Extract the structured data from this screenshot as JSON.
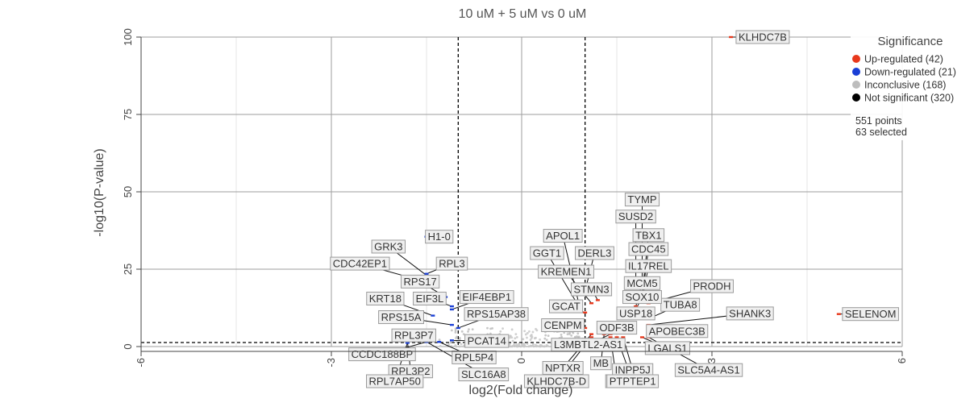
{
  "chart_data": {
    "type": "scatter",
    "title": "10 uM + 5 uM vs 0 uM",
    "xlabel": "log2(Fold change)",
    "ylabel": "-log10(P-value)",
    "xlim": [
      -6,
      6
    ],
    "ylim": [
      0,
      100
    ],
    "x_ticks": [
      "-6",
      "-3",
      "0",
      "3",
      "6"
    ],
    "y_ticks": [
      "0",
      "25",
      "50",
      "75",
      "100"
    ],
    "fold_change_threshold_lines": [
      -1,
      1
    ],
    "pvalue_threshold_line": 1.3,
    "grid": true,
    "legend": {
      "title": "Significance",
      "position": "top-right",
      "entries": [
        {
          "label": "Up-regulated (42)",
          "color": "#e8381c"
        },
        {
          "label": "Down-regulated (21)",
          "color": "#1a3fd6"
        },
        {
          "label": "Inconclusive (168)",
          "color": "#bdbdbd"
        },
        {
          "label": "Not significant (320)",
          "color": "#000000"
        }
      ],
      "summary": [
        "551 points",
        "63 selected"
      ]
    },
    "points": [
      {
        "gene": "KLHDC7B",
        "x": 3.3,
        "y": 100,
        "sig": "up",
        "lx": 3.8,
        "ly": 100
      },
      {
        "gene": "SELENOM",
        "x": 5.0,
        "y": 10.5,
        "sig": "up",
        "lx": 5.5,
        "ly": 10.5
      },
      {
        "gene": "TYMP",
        "x": 1.9,
        "y": 21,
        "sig": "up",
        "lx": 1.9,
        "ly": 47.5
      },
      {
        "gene": "SUSD2",
        "x": 1.8,
        "y": 19,
        "sig": "up",
        "lx": 1.8,
        "ly": 42
      },
      {
        "gene": "TBX1",
        "x": 1.9,
        "y": 17,
        "sig": "up",
        "lx": 2.0,
        "ly": 36
      },
      {
        "gene": "CDC45",
        "x": 1.9,
        "y": 16,
        "sig": "up",
        "lx": 2.0,
        "ly": 31.5
      },
      {
        "gene": "IL17REL",
        "x": 1.9,
        "y": 15,
        "sig": "up",
        "lx": 2.0,
        "ly": 26
      },
      {
        "gene": "PRODH",
        "x": 2.0,
        "y": 14,
        "sig": "up",
        "lx": 3.0,
        "ly": 19.5
      },
      {
        "gene": "TUBA8",
        "x": 2.0,
        "y": 9,
        "sig": "up",
        "lx": 2.5,
        "ly": 13.5
      },
      {
        "gene": "SHANK3",
        "x": 2.0,
        "y": 7,
        "sig": "up",
        "lx": 3.6,
        "ly": 10.7
      },
      {
        "gene": "APOBEC3B",
        "x": 2.0,
        "y": 5,
        "sig": "up",
        "lx": 2.45,
        "ly": 5.0
      },
      {
        "gene": "MCM5",
        "x": 1.8,
        "y": 13,
        "sig": "up",
        "lx": 1.9,
        "ly": 20.5
      },
      {
        "gene": "SOX10",
        "x": 1.8,
        "y": 12,
        "sig": "up",
        "lx": 1.9,
        "ly": 16
      },
      {
        "gene": "USP18",
        "x": 1.7,
        "y": 10,
        "sig": "up",
        "lx": 1.8,
        "ly": 10.7
      },
      {
        "gene": "STMN3",
        "x": 1.2,
        "y": 15,
        "sig": "up",
        "lx": 1.1,
        "ly": 18.5
      },
      {
        "gene": "DERL3",
        "x": 1.0,
        "y": 18,
        "sig": "up",
        "lx": 1.15,
        "ly": 30.2
      },
      {
        "gene": "APOL1",
        "x": 0.9,
        "y": 14,
        "sig": "up",
        "lx": 0.65,
        "ly": 35.8
      },
      {
        "gene": "GGT1",
        "x": 0.9,
        "y": 13,
        "sig": "up",
        "lx": 0.4,
        "ly": 30.2
      },
      {
        "gene": "KREMEN1",
        "x": 1.1,
        "y": 14,
        "sig": "up",
        "lx": 0.7,
        "ly": 24.2
      },
      {
        "gene": "GCAT",
        "x": 1.0,
        "y": 11,
        "sig": "up",
        "lx": 0.7,
        "ly": 13
      },
      {
        "gene": "CENPM",
        "x": 1.0,
        "y": 6,
        "sig": "up",
        "lx": 0.65,
        "ly": 6.9
      },
      {
        "gene": "ODF3B",
        "x": 1.4,
        "y": 6,
        "sig": "up",
        "lx": 1.5,
        "ly": 6.1
      },
      {
        "gene": "L3MBTL2-AS1",
        "x": 1.4,
        "y": 4,
        "sig": "up",
        "lx": 1.05,
        "ly": 0.6
      },
      {
        "gene": "LGALS1",
        "x": 1.9,
        "y": 3,
        "sig": "up",
        "lx": 2.3,
        "ly": -0.5
      },
      {
        "gene": "SLC5A4-AS1",
        "x": 2.0,
        "y": 3,
        "sig": "up",
        "lx": 2.95,
        "ly": -7.6
      },
      {
        "gene": "INPP5J",
        "x": 1.6,
        "y": 3,
        "sig": "up",
        "lx": 1.75,
        "ly": -7.6
      },
      {
        "gene": "NPTXR",
        "x": 1.1,
        "y": 4,
        "sig": "up",
        "lx": 0.65,
        "ly": -6.9
      },
      {
        "gene": "MB",
        "x": 1.3,
        "y": 4,
        "sig": "up",
        "lx": 1.25,
        "ly": -5.4
      },
      {
        "gene": "KLHDC7B-D",
        "x": 1.1,
        "y": 3,
        "sig": "up",
        "lx": 0.55,
        "ly": -11.2
      },
      {
        "gene": "BIN",
        "x": 1.4,
        "y": 3,
        "sig": "up",
        "lx": 1.5,
        "ly": -11.2
      },
      {
        "gene": "PTPTEP1",
        "x": 1.5,
        "y": 3,
        "sig": "up",
        "lx": 1.75,
        "ly": -11.2
      },
      {
        "gene": "H1-0",
        "x": -1.5,
        "y": 35.5,
        "sig": "down",
        "lx": -1.3,
        "ly": 35.5
      },
      {
        "gene": "GRK3",
        "x": -1.5,
        "y": 23,
        "sig": "down",
        "lx": -2.1,
        "ly": 32.3
      },
      {
        "gene": "CDC42EP1",
        "x": -1.7,
        "y": 22,
        "sig": "down",
        "lx": -2.55,
        "ly": 26.8
      },
      {
        "gene": "RPL3",
        "x": -1.5,
        "y": 23.5,
        "sig": "down",
        "lx": -1.1,
        "ly": 26.8
      },
      {
        "gene": "RPS17",
        "x": -1.2,
        "y": 16,
        "sig": "down",
        "lx": -1.6,
        "ly": 21
      },
      {
        "gene": "KRT18",
        "x": -1.4,
        "y": 10,
        "sig": "down",
        "lx": -2.15,
        "ly": 15.5
      },
      {
        "gene": "EIF3L",
        "x": -1.1,
        "y": 13,
        "sig": "down",
        "lx": -1.45,
        "ly": 15.5
      },
      {
        "gene": "EIF4EBP1",
        "x": -1.1,
        "y": 12,
        "sig": "down",
        "lx": -0.55,
        "ly": 16
      },
      {
        "gene": "RPS15A",
        "x": -1.1,
        "y": 7,
        "sig": "down",
        "lx": -1.9,
        "ly": 9.5
      },
      {
        "gene": "RPS15AP38",
        "x": -1.0,
        "y": 6,
        "sig": "down",
        "lx": -0.4,
        "ly": 10.5
      },
      {
        "gene": "RPL3P7",
        "x": -1.6,
        "y": 2,
        "sig": "down",
        "lx": -1.7,
        "ly": 3.6
      },
      {
        "gene": "PCAT14",
        "x": -1.1,
        "y": 2,
        "sig": "down",
        "lx": -0.55,
        "ly": 1.8
      },
      {
        "gene": "CCDC188BP",
        "x": -1.5,
        "y": 1.5,
        "sig": "down",
        "lx": -2.2,
        "ly": -2.5
      },
      {
        "gene": "RPL5P4",
        "x": -1.3,
        "y": 1.5,
        "sig": "down",
        "lx": -0.75,
        "ly": -3.5
      },
      {
        "gene": "RPL3P2",
        "x": -1.8,
        "y": 1.5,
        "sig": "down",
        "lx": -1.75,
        "ly": -8
      },
      {
        "gene": "SLC16A8",
        "x": -1.5,
        "y": 1.5,
        "sig": "down",
        "lx": -0.6,
        "ly": -9
      },
      {
        "gene": "RPL7AP50",
        "x": -1.8,
        "y": 1.2,
        "sig": "down",
        "lx": -2.0,
        "ly": -11.2
      }
    ]
  }
}
